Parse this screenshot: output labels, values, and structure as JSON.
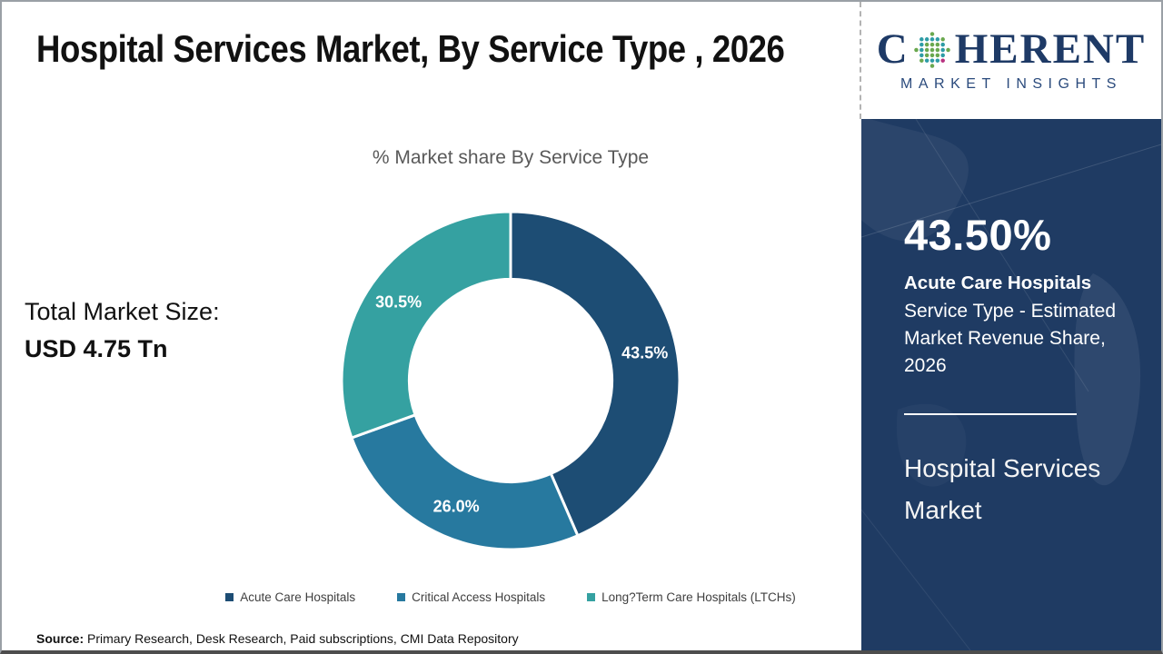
{
  "header": {
    "title": "Hospital Services Market, By Service Type , 2026"
  },
  "logo": {
    "part1": "C",
    "part2": "HERENT",
    "subtitle": "MARKET INSIGHTS",
    "text_color": "#1e3a66",
    "subtitle_color": "#2a4a7c",
    "globe_colors": {
      "inner": "#6aa84f",
      "mid": "#2e9ca6",
      "outer_accent": "#b83280"
    }
  },
  "main": {
    "total_label": "Total Market Size:",
    "total_value": "USD 4.75 Tn"
  },
  "chart_data": {
    "type": "pie",
    "donut": true,
    "inner_radius_ratio": 0.6,
    "title": "% Market share By Service Type",
    "categories": [
      "Acute Care Hospitals",
      "Critical Access Hospitals",
      "Long?Term Care Hospitals (LTCHs)"
    ],
    "values": [
      43.5,
      26.0,
      30.5
    ],
    "labels": [
      "43.5%",
      "26.0%",
      "30.5%"
    ],
    "colors": [
      "#1d4d74",
      "#27799f",
      "#35a1a1"
    ],
    "label_color": "#ffffff",
    "start_angle": 0,
    "legend_position": "bottom"
  },
  "sidebar": {
    "bg_color": "#1f3b63",
    "stat_value": "43.50%",
    "stat_bold": "Acute Care Hospitals",
    "stat_desc": "Service Type - Estimated Market Revenue Share, 2026",
    "market_name": "Hospital Services Market"
  },
  "footer": {
    "source_label": "Source:",
    "source_text": " Primary Research, Desk Research, Paid subscriptions, CMI Data Repository"
  }
}
